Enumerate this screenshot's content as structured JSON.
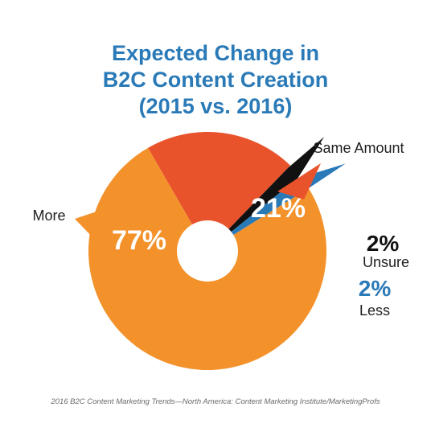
{
  "title_lines": [
    "Expected Change in",
    "B2C Content Creation",
    "(2015 vs. 2016)"
  ],
  "source": "2016 B2C Content Marketing Trends—North America: Content Marketing Institute/MarketingProfs",
  "chart_data": {
    "type": "pie",
    "title": "Expected Change in B2C Content Creation (2015 vs. 2016)",
    "slices": [
      {
        "name": "Same Amount",
        "value": 21,
        "label": "21%",
        "color": "#e8532c"
      },
      {
        "name": "Unsure",
        "value": 2,
        "label": "2%",
        "color": "#111111"
      },
      {
        "name": "Less",
        "value": 2,
        "label": "2%",
        "color": "#2a7ab8"
      },
      {
        "name": "More",
        "value": 77,
        "label": "77%",
        "color": "#f3922b"
      }
    ],
    "donut_hole": true
  }
}
